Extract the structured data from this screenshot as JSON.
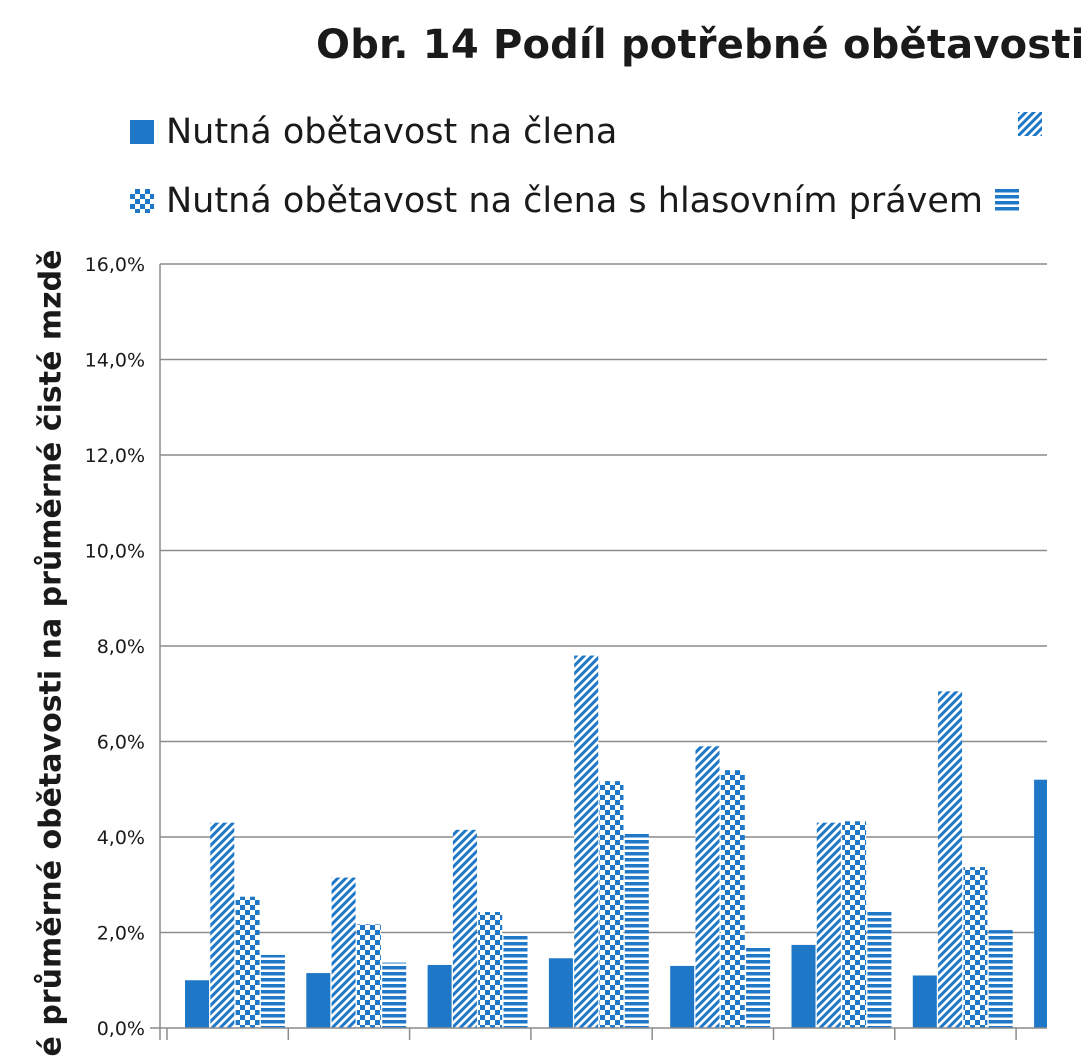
{
  "chart_data": {
    "type": "bar",
    "title": "Obr. 14   Podíl potřebné obětavosti",
    "ylabel": "é průměrné obětavosti na průměrné čisté mzdě",
    "ylim": [
      0,
      0.16
    ],
    "yticks": [
      "0,0%",
      "2,0%",
      "4,0%",
      "6,0%",
      "8,0%",
      "10,0%",
      "12,0%",
      "14,0%",
      "16,0%"
    ],
    "grid": true,
    "legend_position": "top",
    "categories": [
      "",
      "",
      "",
      "",
      "",
      "",
      "",
      ""
    ],
    "series": [
      {
        "name": "Nutná obětavost na člena",
        "color": "#1f77c8",
        "pattern": "solid",
        "values": [
          0.01,
          0.0115,
          0.0132,
          0.0146,
          0.013,
          0.0174,
          0.011,
          0.052
        ]
      },
      {
        "name": "",
        "color": "#1f77c8",
        "pattern": "diagonal",
        "values": [
          0.043,
          0.0315,
          0.0415,
          0.078,
          0.059,
          0.043,
          0.0705,
          null
        ]
      },
      {
        "name": "Nutná obětavost na člena s hlasovním právem",
        "color": "#1f77c8",
        "pattern": "checker",
        "values": [
          0.0275,
          0.0217,
          0.0243,
          0.0517,
          0.054,
          0.0433,
          0.0337,
          null
        ]
      },
      {
        "name": "",
        "color": "#1f77c8",
        "pattern": "horizontal",
        "values": [
          0.0153,
          0.0137,
          0.0193,
          0.041,
          0.017,
          0.0243,
          0.0205,
          null
        ]
      }
    ]
  }
}
